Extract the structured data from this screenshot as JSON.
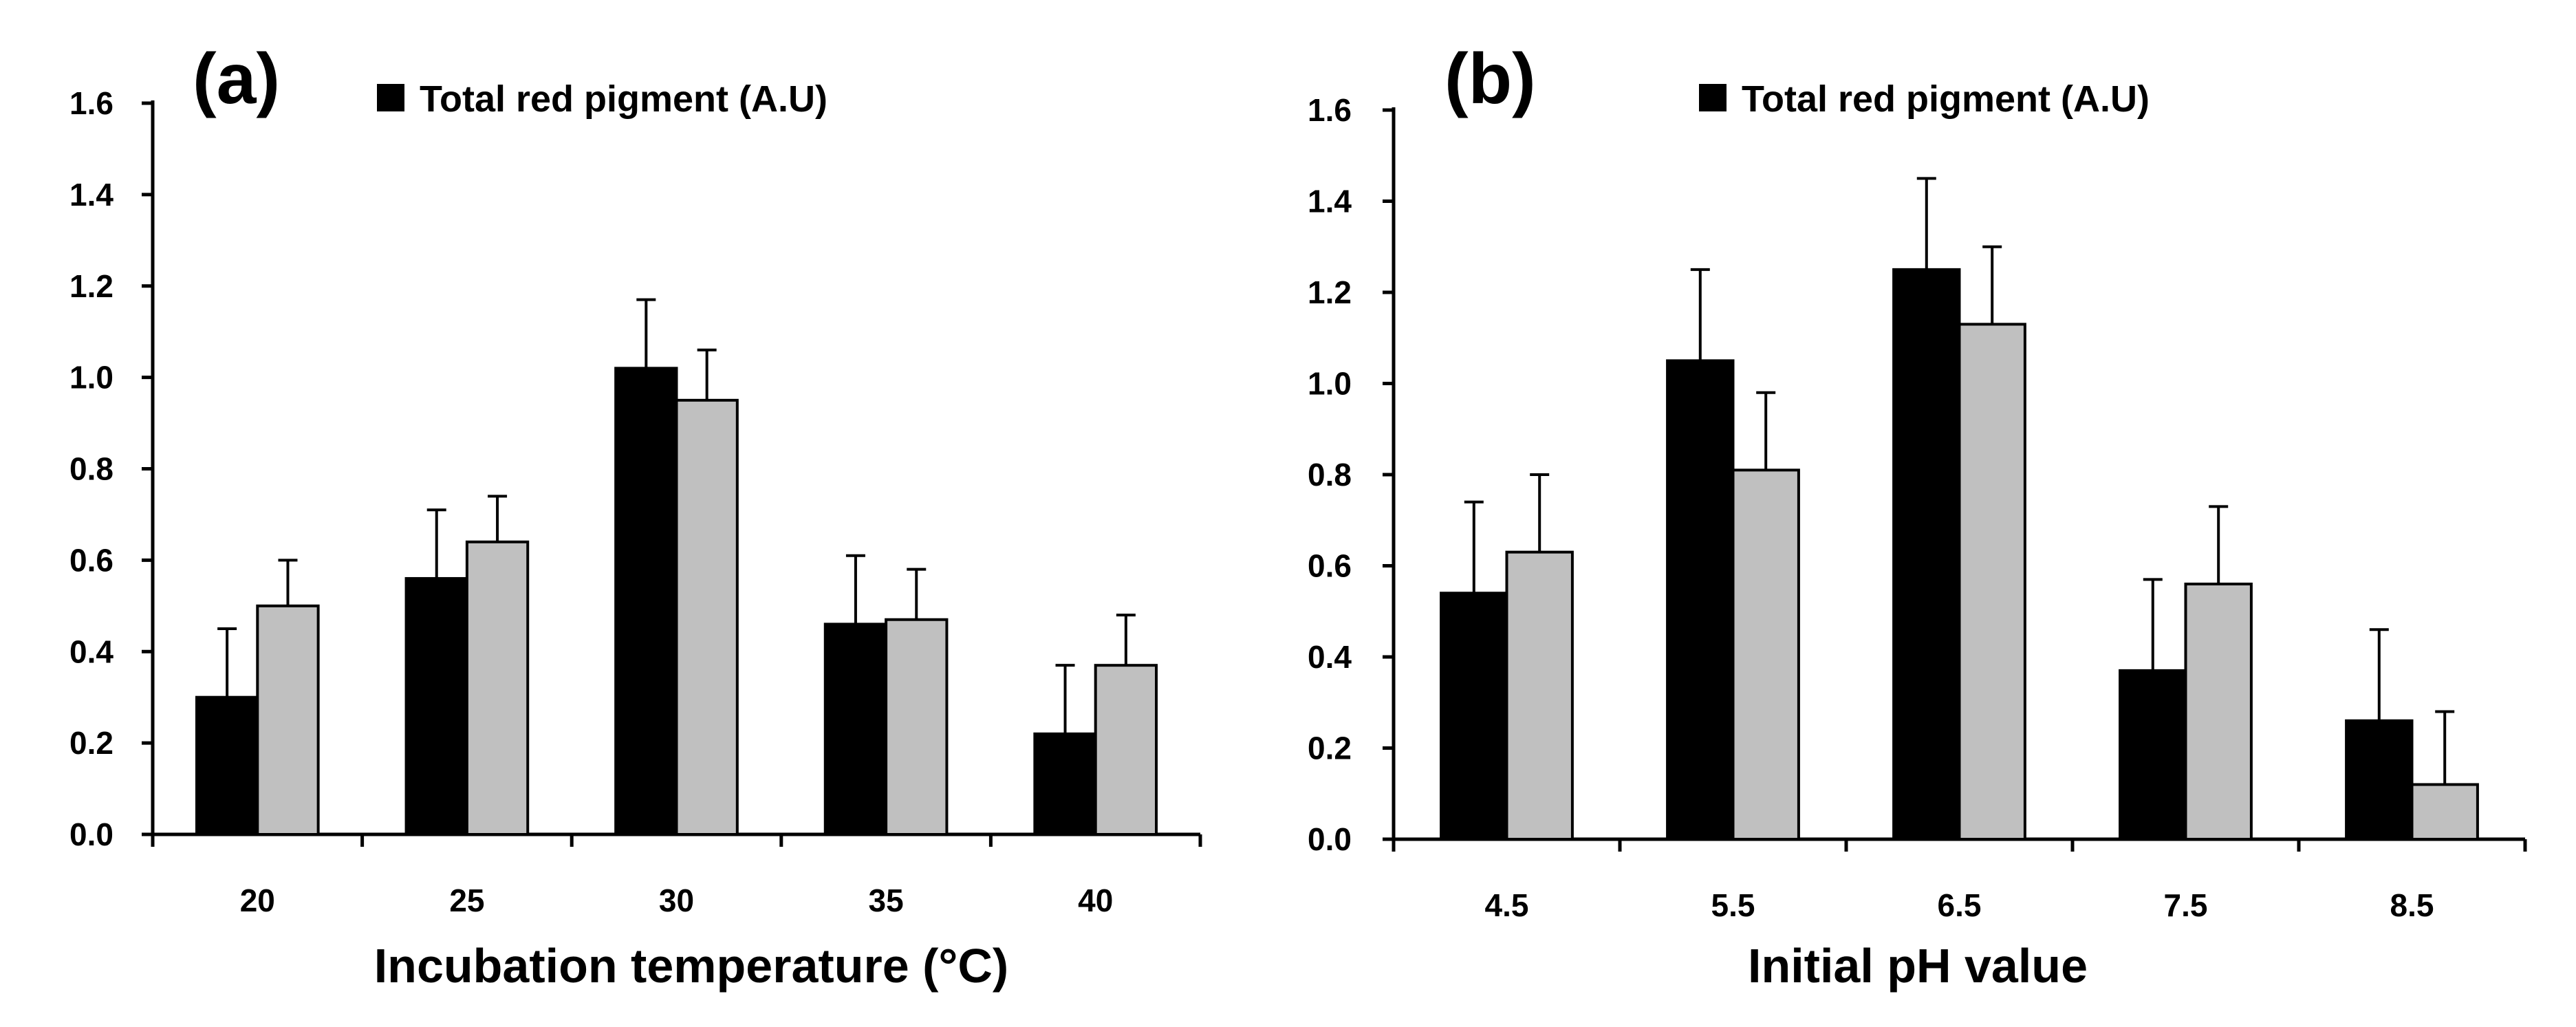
{
  "chart_data": [
    {
      "type": "bar",
      "panel_label": "(a)",
      "categories": [
        "20",
        "25",
        "30",
        "35",
        "40"
      ],
      "series": [
        {
          "name": "Total red pigment (A.U)",
          "color": "#000000",
          "values": [
            0.3,
            0.56,
            1.02,
            0.46,
            0.22
          ],
          "errors": [
            0.15,
            0.15,
            0.15,
            0.15,
            0.15
          ]
        },
        {
          "name": "",
          "color": "#c0c0c0",
          "values": [
            0.5,
            0.64,
            0.95,
            0.47,
            0.37
          ],
          "errors": [
            0.1,
            0.1,
            0.11,
            0.11,
            0.11
          ]
        }
      ],
      "legend": [
        "Total red pigment (A.U)"
      ],
      "xlabel": "Incubation temperature (°C)",
      "ylabel": "",
      "ylim": [
        0,
        1.6
      ],
      "yticks": [
        "0.0",
        "0.2",
        "0.4",
        "0.6",
        "0.8",
        "1.0",
        "1.2",
        "1.4",
        "1.6"
      ]
    },
    {
      "type": "bar",
      "panel_label": "(b)",
      "categories": [
        "4.5",
        "5.5",
        "6.5",
        "7.5",
        "8.5"
      ],
      "series": [
        {
          "name": "Total red pigment (A.U)",
          "color": "#000000",
          "values": [
            0.54,
            1.05,
            1.25,
            0.37,
            0.26
          ],
          "errors": [
            0.2,
            0.2,
            0.2,
            0.2,
            0.2
          ]
        },
        {
          "name": "",
          "color": "#c0c0c0",
          "values": [
            0.63,
            0.81,
            1.13,
            0.56,
            0.12
          ],
          "errors": [
            0.17,
            0.17,
            0.17,
            0.17,
            0.16
          ]
        }
      ],
      "legend": [
        "Total red pigment (A.U)"
      ],
      "xlabel": "Initial pH value",
      "ylabel": "",
      "ylim": [
        0,
        1.6
      ],
      "yticks": [
        "0.0",
        "0.2",
        "0.4",
        "0.6",
        "0.8",
        "1.0",
        "1.2",
        "1.4",
        "1.6"
      ]
    }
  ]
}
